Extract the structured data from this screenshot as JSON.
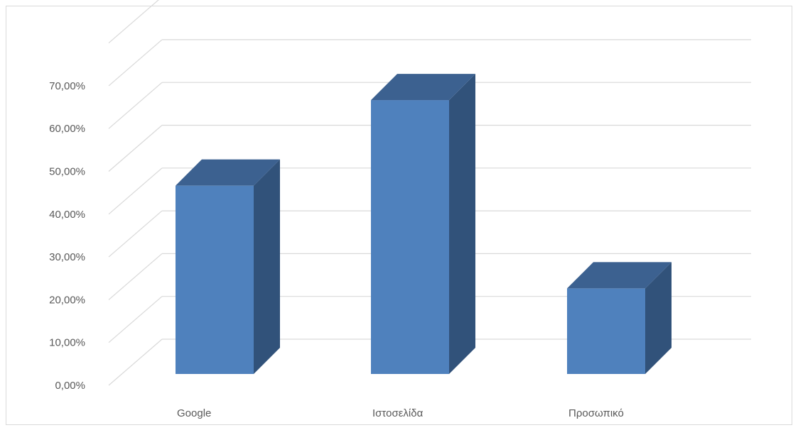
{
  "chart_data": {
    "type": "bar",
    "title": "",
    "xlabel": "",
    "ylabel": "",
    "categories": [
      "Google",
      "Ιστοσελίδα",
      "Προσωπικό"
    ],
    "values": [
      44,
      64,
      20
    ],
    "ylim": [
      0,
      70
    ],
    "yticks": [
      0,
      10,
      20,
      30,
      40,
      50,
      60,
      70
    ],
    "ytick_labels": [
      "0,00%",
      "10,00%",
      "20,00%",
      "30,00%",
      "40,00%",
      "50,00%",
      "60,00%",
      "70,00%"
    ],
    "grid": true,
    "legend": "none",
    "style": "3d-column",
    "colors": {
      "bar_front": "#4f81bd",
      "bar_side": "#31527a",
      "bar_top": "#3c6190",
      "grid": "#d9d9d9",
      "frame": "#d9d9d9",
      "tick_text": "#595959"
    }
  }
}
